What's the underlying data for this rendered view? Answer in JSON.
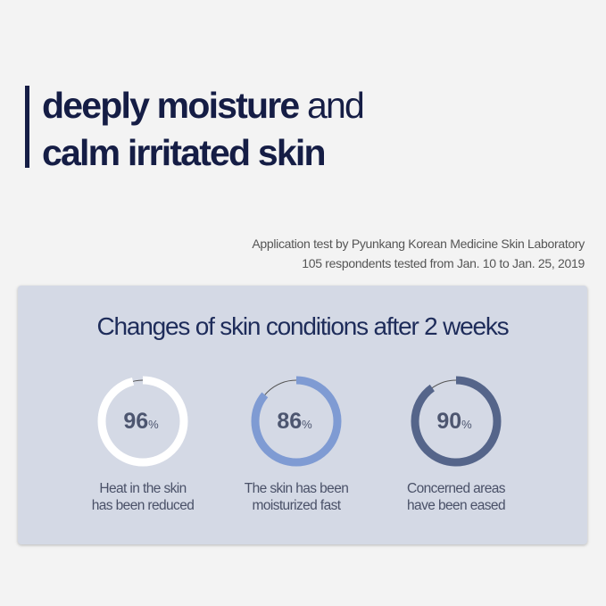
{
  "headline": {
    "line1_bold": "deeply moisture",
    "line1_light": "and",
    "line2": "calm irritated skin"
  },
  "source": {
    "line1": "Application test by Pyunkang Korean Medicine Skin Laboratory",
    "line2": "105 respondents tested from Jan. 10 to Jan. 25, 2019"
  },
  "panel": {
    "title": "Changes of skin conditions after 2 weeks",
    "stats": [
      {
        "value": 96,
        "label": "96",
        "unit": "%",
        "caption1": "Heat in the skin",
        "caption2": "has been reduced",
        "color": "#ffffff"
      },
      {
        "value": 86,
        "label": "86",
        "unit": "%",
        "caption1": "The skin has been",
        "caption2": "moisturized fast",
        "color": "#7f9bd3"
      },
      {
        "value": 90,
        "label": "90",
        "unit": "%",
        "caption1": "Concerned areas",
        "caption2": "have been eased",
        "color": "#55658a"
      }
    ]
  },
  "colors": {
    "headline": "#151d45",
    "panel": "#d4d9e5",
    "number": "#4d5670"
  }
}
